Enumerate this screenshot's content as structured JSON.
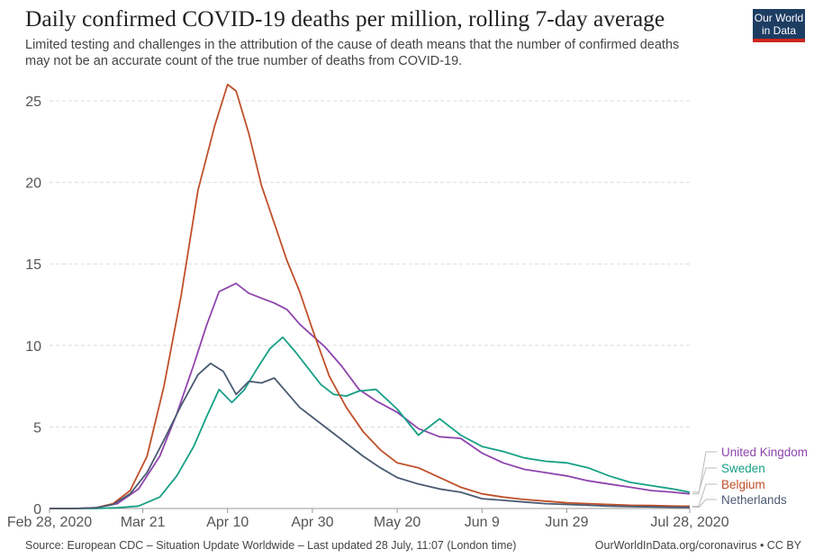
{
  "header": {
    "title": "Daily confirmed COVID-19 deaths per million, rolling 7-day average",
    "subtitle_line1": "Limited testing and challenges in the attribution of the cause of death means that the number of confirmed deaths",
    "subtitle_line2": "may not be an accurate count of the true number of deaths from COVID-19."
  },
  "logo": {
    "line1": "Our World",
    "line2": "in Data"
  },
  "footer": {
    "source": "Source: European CDC – Situation Update Worldwide – Last updated 28 July, 11:07 (London time)",
    "credit": "OurWorldInData.org/coronavirus • CC BY"
  },
  "chart_data": {
    "type": "line",
    "title": "Daily confirmed COVID-19 deaths per million, rolling 7-day average",
    "xlabel": "",
    "ylabel": "",
    "ylim": [
      0,
      26
    ],
    "yticks": [
      0,
      5,
      10,
      15,
      20,
      25
    ],
    "xlim": [
      "2020-02-28",
      "2020-07-28"
    ],
    "xticks": [
      {
        "date": "2020-02-28",
        "label": "Feb 28, 2020"
      },
      {
        "date": "2020-03-21",
        "label": "Mar 21"
      },
      {
        "date": "2020-04-10",
        "label": "Apr 10"
      },
      {
        "date": "2020-04-30",
        "label": "Apr 30"
      },
      {
        "date": "2020-05-20",
        "label": "May 20"
      },
      {
        "date": "2020-06-09",
        "label": "Jun 9"
      },
      {
        "date": "2020-06-29",
        "label": "Jun 29"
      },
      {
        "date": "2020-07-28",
        "label": "Jul 28, 2020"
      }
    ],
    "grid": "horizontal dashed",
    "legend": "right, end of lines",
    "series": [
      {
        "name": "United Kingdom",
        "color": "#8e44ad",
        "x": [
          "2020-02-28",
          "2020-03-05",
          "2020-03-10",
          "2020-03-15",
          "2020-03-20",
          "2020-03-25",
          "2020-03-29",
          "2020-04-02",
          "2020-04-05",
          "2020-04-08",
          "2020-04-12",
          "2020-04-15",
          "2020-04-18",
          "2020-04-21",
          "2020-04-24",
          "2020-04-27",
          "2020-04-30",
          "2020-05-03",
          "2020-05-07",
          "2020-05-11",
          "2020-05-15",
          "2020-05-20",
          "2020-05-25",
          "2020-05-30",
          "2020-06-04",
          "2020-06-09",
          "2020-06-14",
          "2020-06-19",
          "2020-06-24",
          "2020-06-29",
          "2020-07-04",
          "2020-07-09",
          "2020-07-14",
          "2020-07-19",
          "2020-07-24",
          "2020-07-28"
        ],
        "values": [
          0,
          0,
          0.05,
          0.3,
          1.2,
          3.2,
          5.8,
          8.8,
          11.2,
          13.3,
          13.8,
          13.2,
          12.9,
          12.6,
          12.2,
          11.3,
          10.6,
          9.9,
          8.7,
          7.3,
          6.6,
          5.9,
          4.9,
          4.4,
          4.3,
          3.4,
          2.8,
          2.4,
          2.2,
          2.0,
          1.7,
          1.5,
          1.3,
          1.1,
          1.0,
          0.9
        ]
      },
      {
        "name": "Sweden",
        "color": "#16a085",
        "x": [
          "2020-02-28",
          "2020-03-10",
          "2020-03-15",
          "2020-03-20",
          "2020-03-25",
          "2020-03-29",
          "2020-04-02",
          "2020-04-05",
          "2020-04-08",
          "2020-04-11",
          "2020-04-14",
          "2020-04-17",
          "2020-04-20",
          "2020-04-23",
          "2020-04-26",
          "2020-04-29",
          "2020-05-02",
          "2020-05-05",
          "2020-05-08",
          "2020-05-11",
          "2020-05-15",
          "2020-05-20",
          "2020-05-25",
          "2020-05-30",
          "2020-06-04",
          "2020-06-09",
          "2020-06-14",
          "2020-06-19",
          "2020-06-24",
          "2020-06-29",
          "2020-07-04",
          "2020-07-09",
          "2020-07-14",
          "2020-07-19",
          "2020-07-24",
          "2020-07-28"
        ],
        "values": [
          0,
          0,
          0.05,
          0.15,
          0.7,
          2.0,
          3.8,
          5.6,
          7.3,
          6.5,
          7.3,
          8.6,
          9.8,
          10.5,
          9.6,
          8.6,
          7.6,
          7.0,
          6.9,
          7.2,
          7.3,
          6.1,
          4.5,
          5.5,
          4.5,
          3.8,
          3.5,
          3.1,
          2.9,
          2.8,
          2.5,
          2.0,
          1.6,
          1.4,
          1.2,
          1.0
        ]
      },
      {
        "name": "Belgium",
        "color": "#c0502a",
        "x": [
          "2020-02-28",
          "2020-03-05",
          "2020-03-10",
          "2020-03-14",
          "2020-03-18",
          "2020-03-22",
          "2020-03-26",
          "2020-03-30",
          "2020-04-03",
          "2020-04-07",
          "2020-04-10",
          "2020-04-12",
          "2020-04-15",
          "2020-04-18",
          "2020-04-21",
          "2020-04-24",
          "2020-04-27",
          "2020-04-30",
          "2020-05-04",
          "2020-05-08",
          "2020-05-12",
          "2020-05-16",
          "2020-05-20",
          "2020-05-25",
          "2020-05-30",
          "2020-06-04",
          "2020-06-09",
          "2020-06-14",
          "2020-06-19",
          "2020-06-24",
          "2020-06-29",
          "2020-07-04",
          "2020-07-09",
          "2020-07-14",
          "2020-07-19",
          "2020-07-24",
          "2020-07-28"
        ],
        "values": [
          0,
          0,
          0.05,
          0.3,
          1.1,
          3.2,
          7.5,
          13.0,
          19.5,
          23.5,
          26.0,
          25.6,
          23.0,
          19.8,
          17.5,
          15.2,
          13.3,
          11.0,
          8.1,
          6.2,
          4.7,
          3.6,
          2.8,
          2.5,
          1.9,
          1.3,
          0.9,
          0.7,
          0.55,
          0.45,
          0.35,
          0.3,
          0.25,
          0.2,
          0.18,
          0.15,
          0.14
        ]
      },
      {
        "name": "Netherlands",
        "color": "#4a5a72",
        "x": [
          "2020-02-28",
          "2020-03-05",
          "2020-03-10",
          "2020-03-14",
          "2020-03-18",
          "2020-03-22",
          "2020-03-26",
          "2020-03-30",
          "2020-04-03",
          "2020-04-06",
          "2020-04-09",
          "2020-04-12",
          "2020-04-15",
          "2020-04-18",
          "2020-04-21",
          "2020-04-24",
          "2020-04-27",
          "2020-04-30",
          "2020-05-04",
          "2020-05-08",
          "2020-05-12",
          "2020-05-16",
          "2020-05-20",
          "2020-05-25",
          "2020-05-30",
          "2020-06-04",
          "2020-06-09",
          "2020-06-14",
          "2020-06-19",
          "2020-06-24",
          "2020-06-29",
          "2020-07-04",
          "2020-07-09",
          "2020-07-14",
          "2020-07-19",
          "2020-07-24",
          "2020-07-28"
        ],
        "values": [
          0,
          0,
          0.05,
          0.25,
          0.9,
          2.2,
          4.2,
          6.3,
          8.2,
          8.9,
          8.4,
          7.0,
          7.8,
          7.7,
          8.0,
          7.1,
          6.2,
          5.6,
          4.8,
          4.0,
          3.2,
          2.5,
          1.9,
          1.5,
          1.2,
          1.0,
          0.6,
          0.5,
          0.4,
          0.3,
          0.25,
          0.2,
          0.15,
          0.12,
          0.1,
          0.08,
          0.07
        ]
      }
    ]
  }
}
